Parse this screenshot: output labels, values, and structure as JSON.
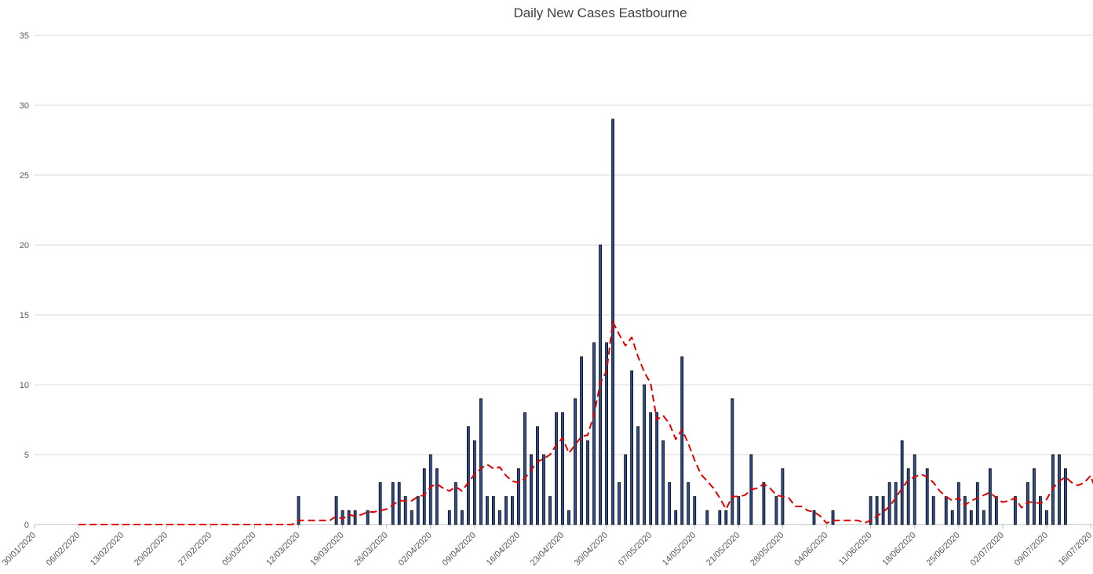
{
  "chart_data": {
    "type": "bar",
    "title": "Daily New Cases Eastbourne",
    "xlabel": "",
    "ylabel": "",
    "ylim": [
      0,
      35
    ],
    "y_ticks": [
      0,
      5,
      10,
      15,
      20,
      25,
      30,
      35
    ],
    "grid": true,
    "x_start": "30/01/2020",
    "x_end": "16/07/2020",
    "x_tick_labels": [
      "30/01/2020",
      "06/02/2020",
      "13/02/2020",
      "20/02/2020",
      "27/02/2020",
      "05/03/2020",
      "12/03/2020",
      "19/03/2020",
      "26/03/2020",
      "02/04/2020",
      "09/04/2020",
      "16/04/2020",
      "23/04/2020",
      "30/04/2020",
      "07/05/2020",
      "14/05/2020",
      "21/05/2020",
      "28/05/2020",
      "04/06/2020",
      "11/06/2020",
      "18/06/2020",
      "25/06/2020",
      "02/07/2020",
      "09/07/2020",
      "16/07/2020"
    ],
    "colors": {
      "bar_fill": "#2f4f8f",
      "bar_edge": "#000000",
      "trend_line": "#e00000",
      "grid": "#d9d9d9"
    },
    "series": [
      {
        "type": "bar",
        "points": [
          [
            "12/03/2020",
            2
          ],
          [
            "18/03/2020",
            2
          ],
          [
            "19/03/2020",
            1
          ],
          [
            "20/03/2020",
            1
          ],
          [
            "21/03/2020",
            1
          ],
          [
            "23/03/2020",
            1
          ],
          [
            "25/03/2020",
            3
          ],
          [
            "27/03/2020",
            3
          ],
          [
            "28/03/2020",
            3
          ],
          [
            "29/03/2020",
            2
          ],
          [
            "30/03/2020",
            1
          ],
          [
            "31/03/2020",
            2
          ],
          [
            "01/04/2020",
            4
          ],
          [
            "02/04/2020",
            5
          ],
          [
            "03/04/2020",
            4
          ],
          [
            "05/04/2020",
            1
          ],
          [
            "06/04/2020",
            3
          ],
          [
            "07/04/2020",
            1
          ],
          [
            "08/04/2020",
            7
          ],
          [
            "09/04/2020",
            6
          ],
          [
            "10/04/2020",
            9
          ],
          [
            "11/04/2020",
            2
          ],
          [
            "12/04/2020",
            2
          ],
          [
            "13/04/2020",
            1
          ],
          [
            "14/04/2020",
            2
          ],
          [
            "15/04/2020",
            2
          ],
          [
            "16/04/2020",
            4
          ],
          [
            "17/04/2020",
            8
          ],
          [
            "18/04/2020",
            5
          ],
          [
            "19/04/2020",
            7
          ],
          [
            "20/04/2020",
            5
          ],
          [
            "21/04/2020",
            2
          ],
          [
            "22/04/2020",
            8
          ],
          [
            "23/04/2020",
            8
          ],
          [
            "24/04/2020",
            1
          ],
          [
            "25/04/2020",
            9
          ],
          [
            "26/04/2020",
            12
          ],
          [
            "27/04/2020",
            6
          ],
          [
            "28/04/2020",
            13
          ],
          [
            "29/04/2020",
            20
          ],
          [
            "30/04/2020",
            13
          ],
          [
            "01/05/2020",
            29
          ],
          [
            "02/05/2020",
            3
          ],
          [
            "03/05/2020",
            5
          ],
          [
            "04/05/2020",
            11
          ],
          [
            "05/05/2020",
            7
          ],
          [
            "06/05/2020",
            10
          ],
          [
            "07/05/2020",
            8
          ],
          [
            "08/05/2020",
            8
          ],
          [
            "09/05/2020",
            6
          ],
          [
            "10/05/2020",
            3
          ],
          [
            "11/05/2020",
            1
          ],
          [
            "12/05/2020",
            12
          ],
          [
            "13/05/2020",
            3
          ],
          [
            "14/05/2020",
            2
          ],
          [
            "16/05/2020",
            1
          ],
          [
            "18/05/2020",
            1
          ],
          [
            "19/05/2020",
            1
          ],
          [
            "20/05/2020",
            9
          ],
          [
            "21/05/2020",
            2
          ],
          [
            "23/05/2020",
            5
          ],
          [
            "25/05/2020",
            3
          ],
          [
            "27/05/2020",
            2
          ],
          [
            "28/05/2020",
            4
          ],
          [
            "02/06/2020",
            1
          ],
          [
            "05/06/2020",
            1
          ],
          [
            "11/06/2020",
            2
          ],
          [
            "12/06/2020",
            2
          ],
          [
            "13/06/2020",
            2
          ],
          [
            "14/06/2020",
            3
          ],
          [
            "15/06/2020",
            3
          ],
          [
            "16/06/2020",
            6
          ],
          [
            "17/06/2020",
            4
          ],
          [
            "18/06/2020",
            5
          ],
          [
            "20/06/2020",
            4
          ],
          [
            "21/06/2020",
            2
          ],
          [
            "23/06/2020",
            2
          ],
          [
            "24/06/2020",
            1
          ],
          [
            "25/06/2020",
            3
          ],
          [
            "26/06/2020",
            2
          ],
          [
            "27/06/2020",
            1
          ],
          [
            "28/06/2020",
            3
          ],
          [
            "29/06/2020",
            1
          ],
          [
            "30/06/2020",
            4
          ],
          [
            "01/07/2020",
            2
          ],
          [
            "04/07/2020",
            2
          ],
          [
            "06/07/2020",
            3
          ],
          [
            "07/07/2020",
            4
          ],
          [
            "08/07/2020",
            2
          ],
          [
            "09/07/2020",
            1
          ],
          [
            "10/07/2020",
            5
          ],
          [
            "11/07/2020",
            5
          ],
          [
            "12/07/2020",
            4
          ]
        ]
      },
      {
        "type": "line",
        "style": "dashed",
        "points": [
          [
            "06/02/2020",
            0
          ],
          [
            "11/03/2020",
            0
          ],
          [
            "12/03/2020",
            0.3
          ],
          [
            "17/03/2020",
            0.3
          ],
          [
            "18/03/2020",
            0.6
          ],
          [
            "19/03/2020",
            0.4
          ],
          [
            "20/03/2020",
            0.7
          ],
          [
            "21/03/2020",
            0.6
          ],
          [
            "22/03/2020",
            0.7
          ],
          [
            "23/03/2020",
            0.9
          ],
          [
            "24/03/2020",
            0.9
          ],
          [
            "25/03/2020",
            1.0
          ],
          [
            "26/03/2020",
            1.1
          ],
          [
            "27/03/2020",
            1.4
          ],
          [
            "28/03/2020",
            1.7
          ],
          [
            "29/03/2020",
            1.7
          ],
          [
            "30/03/2020",
            1.7
          ],
          [
            "31/03/2020",
            2.0
          ],
          [
            "01/04/2020",
            2.1
          ],
          [
            "02/04/2020",
            2.7
          ],
          [
            "03/04/2020",
            2.9
          ],
          [
            "04/04/2020",
            2.6
          ],
          [
            "05/04/2020",
            2.4
          ],
          [
            "06/04/2020",
            2.7
          ],
          [
            "07/04/2020",
            2.4
          ],
          [
            "08/04/2020",
            3.0
          ],
          [
            "09/04/2020",
            3.6
          ],
          [
            "10/04/2020",
            4.0
          ],
          [
            "11/04/2020",
            4.3
          ],
          [
            "12/04/2020",
            4.0
          ],
          [
            "13/04/2020",
            4.1
          ],
          [
            "14/04/2020",
            3.5
          ],
          [
            "15/04/2020",
            3.1
          ],
          [
            "16/04/2020",
            3.0
          ],
          [
            "17/04/2020",
            3.3
          ],
          [
            "18/04/2020",
            3.9
          ],
          [
            "19/04/2020",
            4.5
          ],
          [
            "20/04/2020",
            4.7
          ],
          [
            "21/04/2020",
            5.0
          ],
          [
            "22/04/2020",
            5.7
          ],
          [
            "23/04/2020",
            6.2
          ],
          [
            "24/04/2020",
            5.1
          ],
          [
            "25/04/2020",
            5.7
          ],
          [
            "26/04/2020",
            6.3
          ],
          [
            "27/04/2020",
            6.4
          ],
          [
            "28/04/2020",
            7.9
          ],
          [
            "29/04/2020",
            10.1
          ],
          [
            "30/04/2020",
            11.0
          ],
          [
            "01/05/2020",
            14.5
          ],
          [
            "02/05/2020",
            13.6
          ],
          [
            "03/05/2020",
            12.8
          ],
          [
            "04/05/2020",
            13.4
          ],
          [
            "05/05/2020",
            12.0
          ],
          [
            "06/05/2020",
            10.9
          ],
          [
            "07/05/2020",
            10.1
          ],
          [
            "08/05/2020",
            7.5
          ],
          [
            "09/05/2020",
            7.8
          ],
          [
            "10/05/2020",
            7.2
          ],
          [
            "11/05/2020",
            6.1
          ],
          [
            "12/05/2020",
            6.8
          ],
          [
            "13/05/2020",
            5.8
          ],
          [
            "14/05/2020",
            4.6
          ],
          [
            "15/05/2020",
            3.6
          ],
          [
            "16/05/2020",
            3.1
          ],
          [
            "17/05/2020",
            2.6
          ],
          [
            "18/05/2020",
            1.9
          ],
          [
            "19/05/2020",
            1.1
          ],
          [
            "20/05/2020",
            2.0
          ],
          [
            "21/05/2020",
            2.0
          ],
          [
            "22/05/2020",
            2.1
          ],
          [
            "23/05/2020",
            2.5
          ],
          [
            "24/05/2020",
            2.6
          ],
          [
            "25/05/2020",
            2.9
          ],
          [
            "26/05/2020",
            2.6
          ],
          [
            "27/05/2020",
            2.1
          ],
          [
            "28/05/2020",
            2.0
          ],
          [
            "29/05/2020",
            1.9
          ],
          [
            "30/05/2020",
            1.3
          ],
          [
            "31/05/2020",
            1.3
          ],
          [
            "01/06/2020",
            1.0
          ],
          [
            "02/06/2020",
            0.9
          ],
          [
            "03/06/2020",
            0.6
          ],
          [
            "04/06/2020",
            0.1
          ],
          [
            "05/06/2020",
            0.3
          ],
          [
            "09/06/2020",
            0.3
          ],
          [
            "10/06/2020",
            0.1
          ],
          [
            "11/06/2020",
            0.3
          ],
          [
            "12/06/2020",
            0.6
          ],
          [
            "13/06/2020",
            0.9
          ],
          [
            "14/06/2020",
            1.3
          ],
          [
            "15/06/2020",
            1.9
          ],
          [
            "16/06/2020",
            2.6
          ],
          [
            "17/06/2020",
            3.2
          ],
          [
            "18/06/2020",
            3.4
          ],
          [
            "19/06/2020",
            3.6
          ],
          [
            "20/06/2020",
            3.4
          ],
          [
            "21/06/2020",
            3.0
          ],
          [
            "22/06/2020",
            2.4
          ],
          [
            "23/06/2020",
            2.0
          ],
          [
            "24/06/2020",
            1.7
          ],
          [
            "25/06/2020",
            1.9
          ],
          [
            "26/06/2020",
            1.4
          ],
          [
            "27/06/2020",
            1.7
          ],
          [
            "28/06/2020",
            1.9
          ],
          [
            "29/06/2020",
            2.1
          ],
          [
            "30/06/2020",
            2.3
          ],
          [
            "01/07/2020",
            1.9
          ],
          [
            "02/07/2020",
            1.6
          ],
          [
            "03/07/2020",
            1.7
          ],
          [
            "04/07/2020",
            1.9
          ],
          [
            "05/07/2020",
            1.2
          ],
          [
            "06/07/2020",
            1.6
          ],
          [
            "07/07/2020",
            1.6
          ],
          [
            "08/07/2020",
            1.5
          ],
          [
            "09/07/2020",
            1.8
          ],
          [
            "10/07/2020",
            2.6
          ],
          [
            "11/07/2020",
            3.1
          ],
          [
            "12/07/2020",
            3.4
          ],
          [
            "13/07/2020",
            3.0
          ],
          [
            "14/07/2020",
            2.8
          ],
          [
            "15/07/2020",
            3.0
          ],
          [
            "16/07/2020",
            3.5
          ],
          [
            "17/07/2020",
            2.2
          ]
        ]
      }
    ]
  }
}
